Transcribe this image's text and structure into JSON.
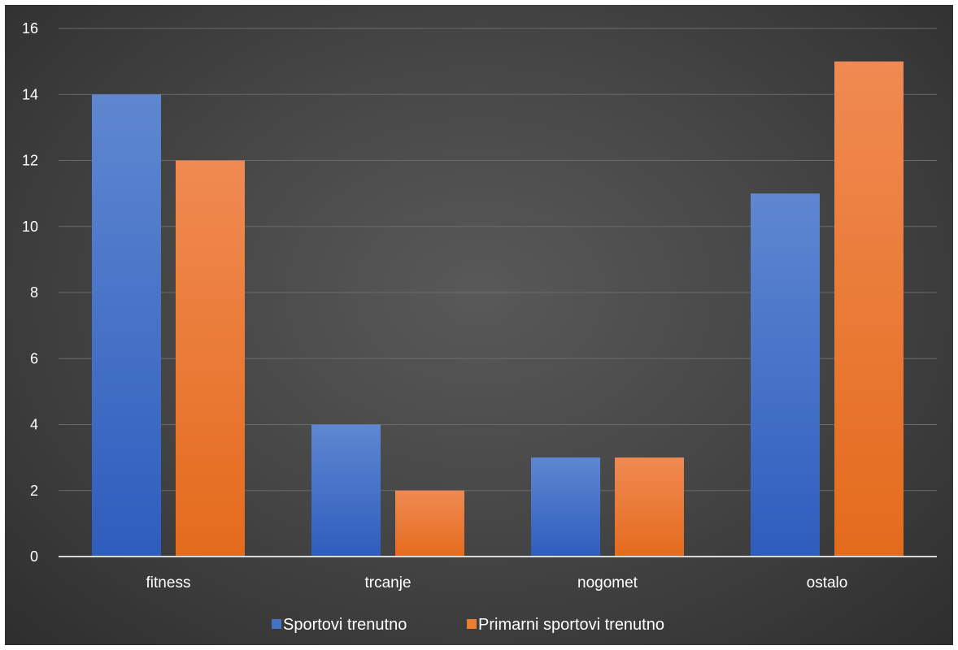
{
  "chart_data": {
    "type": "bar",
    "title": "",
    "xlabel": "",
    "ylabel": "",
    "categories": [
      "fitness",
      "trcanje",
      "nogomet",
      "ostalo"
    ],
    "series": [
      {
        "name": "Sportovi trenutno",
        "values": [
          14,
          4,
          3,
          11
        ],
        "color": "#4472C4"
      },
      {
        "name": "Primarni sportovi trenutno",
        "values": [
          12,
          2,
          3,
          15
        ],
        "color": "#ED7D31"
      }
    ],
    "ylim": [
      0,
      16
    ],
    "yticks": [
      "0",
      "2",
      "4",
      "6",
      "8",
      "10",
      "12",
      "14",
      "16"
    ],
    "grid": true,
    "legend_position": "bottom"
  }
}
